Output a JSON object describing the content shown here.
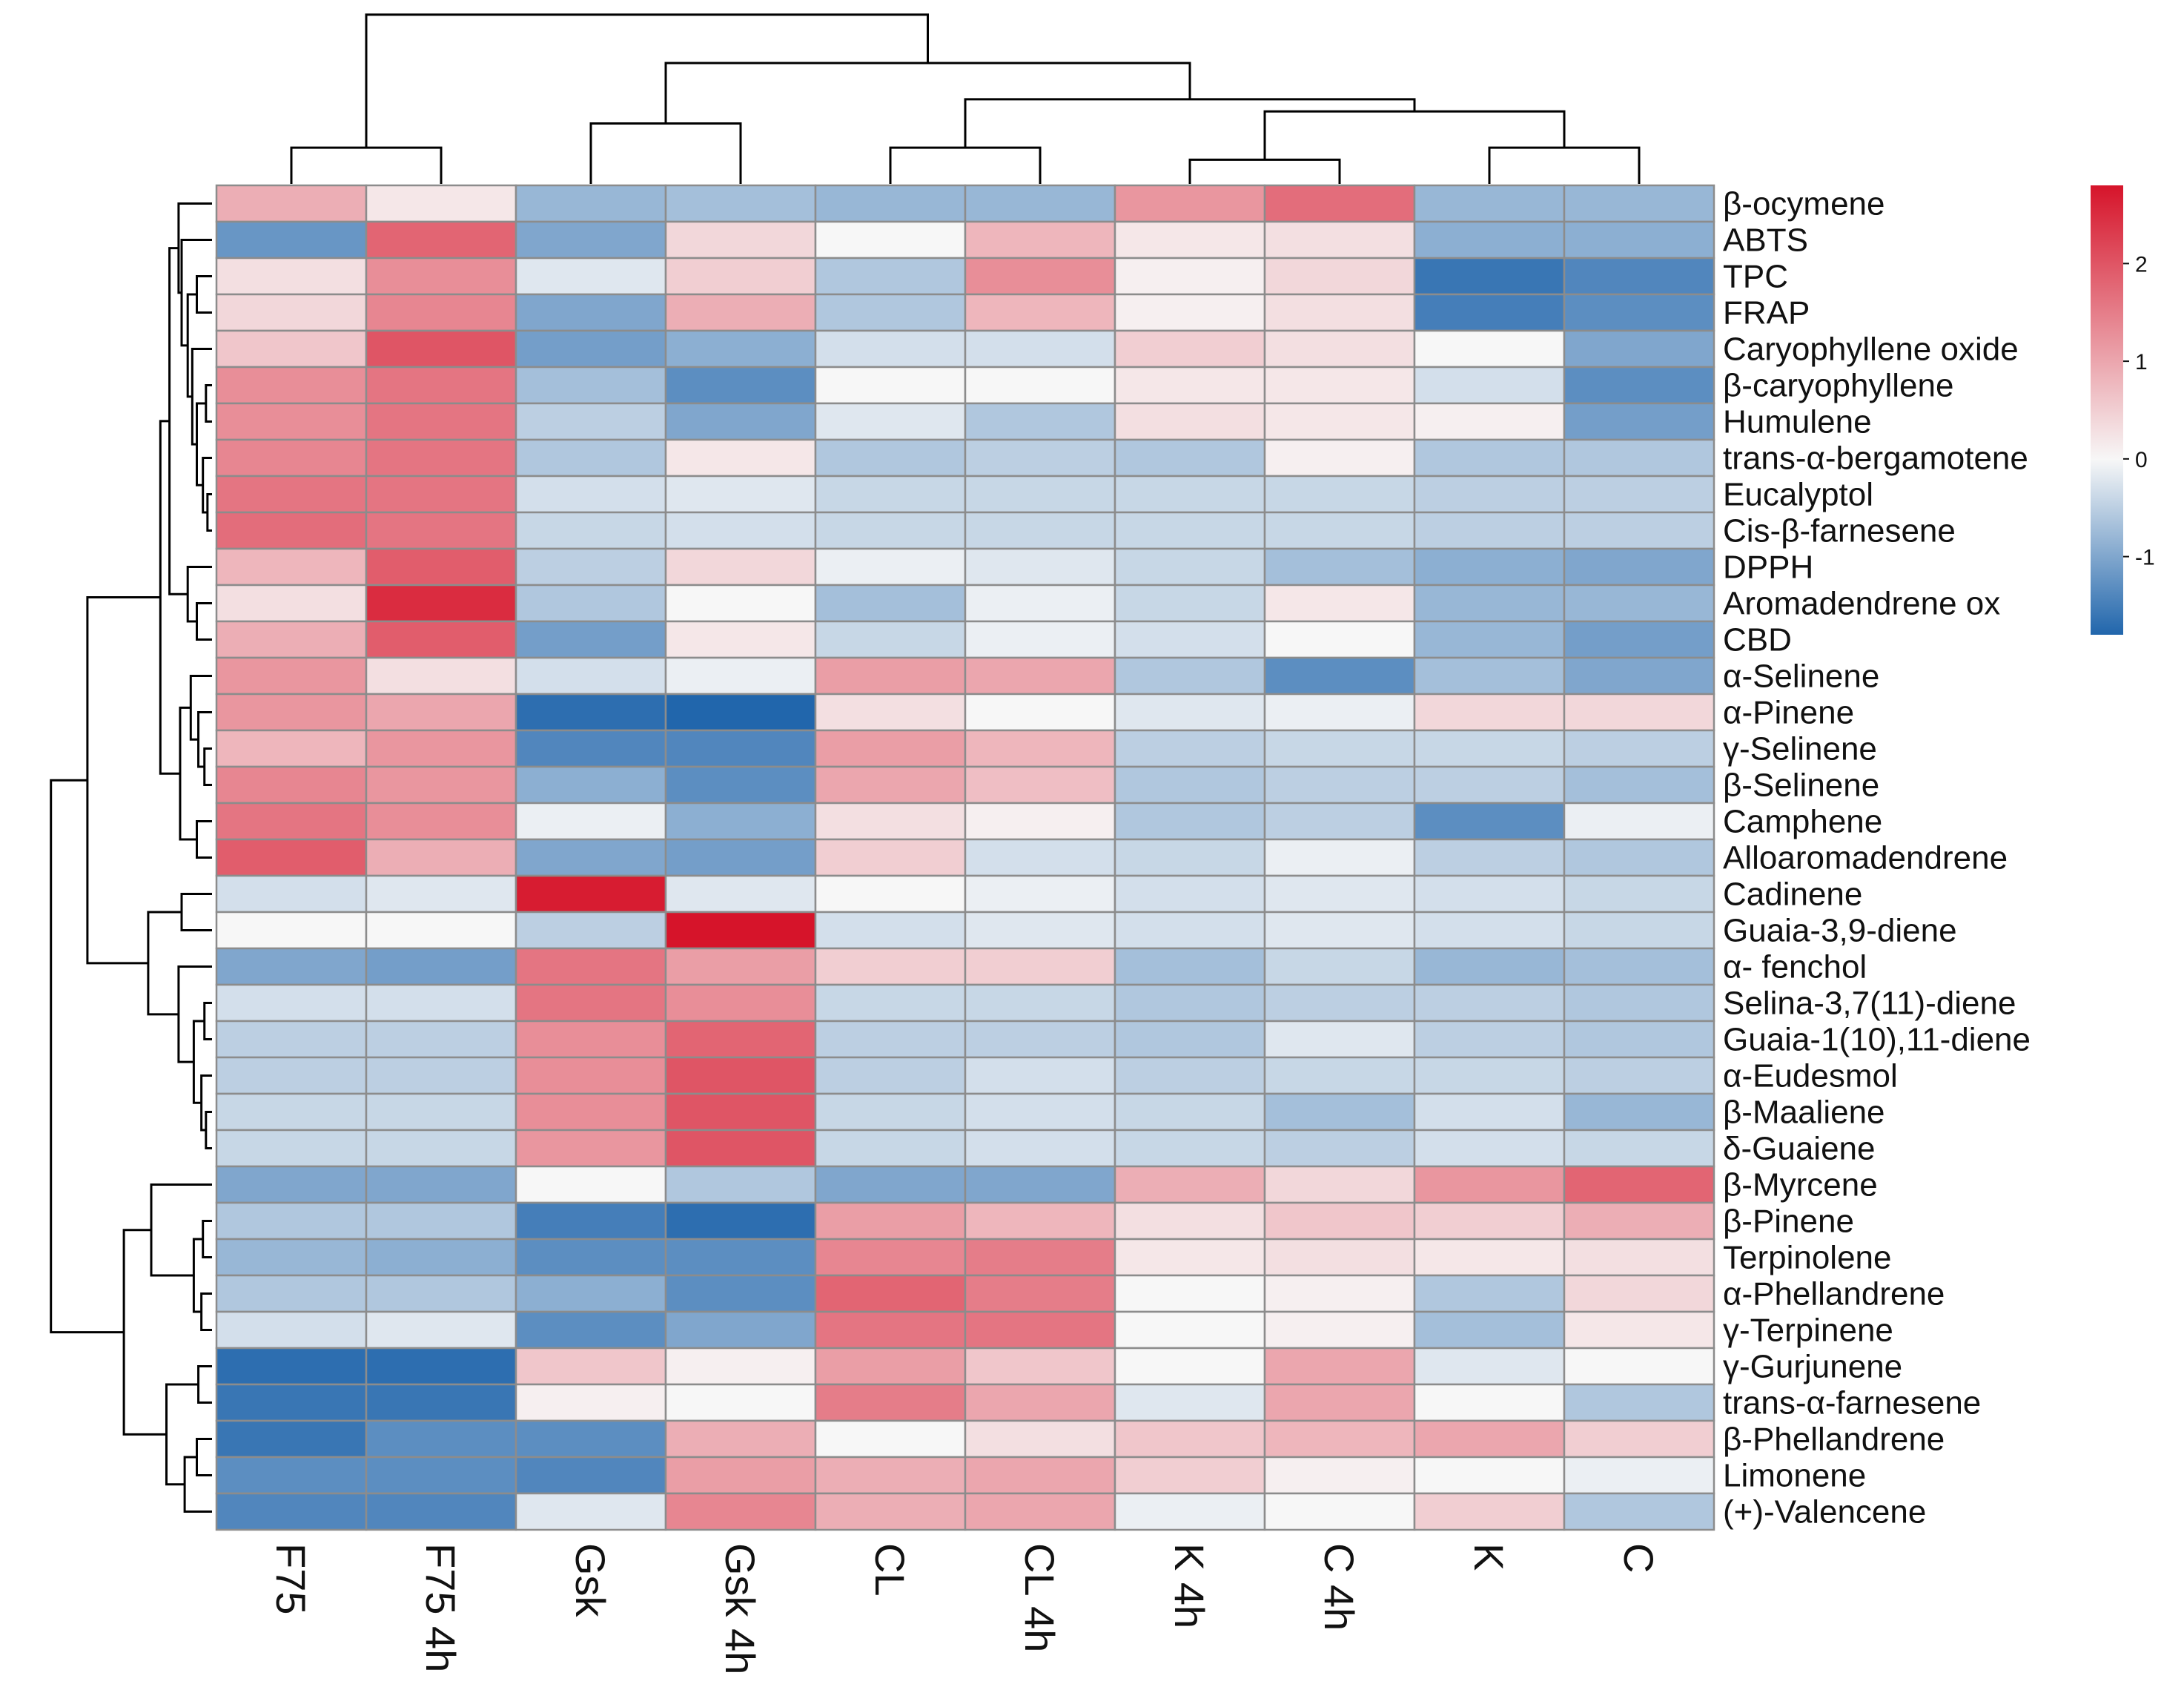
{
  "chart_data": {
    "type": "heatmap",
    "title": "",
    "columns": [
      "F75",
      "F75 4h",
      "Gsk",
      "Gsk 4h",
      "CL",
      "CL 4h",
      "K 4h",
      "C 4h",
      "K",
      "C"
    ],
    "rows": [
      "β-ocymene",
      "ABTS",
      "TPC",
      "FRAP",
      "Caryophyllene oxide",
      "β-caryophyllene",
      "Humulene",
      "trans-α-bergamotene",
      "Eucalyptol",
      "Cis-β-farnesene",
      "DPPH",
      "Aromadendrene ox",
      "CBD",
      "α-Selinene",
      "α-Pinene",
      "γ-Selinene",
      "β-Selinene",
      "Camphene",
      "Alloaromadendrene",
      "Cadinene",
      "Guaia-3,9-diene",
      "α- fenchol",
      "Selina-3,7(11)-diene",
      "Guaia-1(10),11-diene",
      "α-Eudesmol",
      "β-Maaliene",
      "δ-Guaiene",
      "β-Myrcene",
      "β-Pinene",
      "Terpinolene",
      "α-Phellandrene",
      "γ-Terpinene",
      "γ-Gurjunene",
      "trans-α-farnesene",
      "β-Phellandrene",
      "Limonene",
      "(+)-Valencene"
    ],
    "values": [
      [
        0.9,
        0.2,
        -0.8,
        -0.7,
        -0.8,
        -0.8,
        1.2,
        1.7,
        -0.8,
        -0.8
      ],
      [
        -1.2,
        1.8,
        -1.0,
        0.4,
        0.0,
        0.8,
        0.2,
        0.3,
        -0.9,
        -0.9
      ],
      [
        0.3,
        1.3,
        -0.2,
        0.5,
        -0.6,
        1.3,
        0.1,
        0.4,
        -1.6,
        -1.4
      ],
      [
        0.4,
        1.4,
        -1.0,
        0.9,
        -0.6,
        0.8,
        0.1,
        0.3,
        -1.5,
        -1.3
      ],
      [
        0.6,
        2.0,
        -1.1,
        -0.9,
        -0.3,
        -0.3,
        0.5,
        0.3,
        0.0,
        -1.0
      ],
      [
        1.3,
        1.6,
        -0.7,
        -1.3,
        0.0,
        0.0,
        0.2,
        0.2,
        -0.3,
        -1.3
      ],
      [
        1.3,
        1.6,
        -0.5,
        -1.0,
        -0.2,
        -0.6,
        0.3,
        0.2,
        0.1,
        -1.1
      ],
      [
        1.4,
        1.6,
        -0.6,
        0.2,
        -0.6,
        -0.5,
        -0.6,
        0.1,
        -0.6,
        -0.6
      ],
      [
        1.6,
        1.6,
        -0.3,
        -0.2,
        -0.4,
        -0.4,
        -0.4,
        -0.4,
        -0.5,
        -0.5
      ],
      [
        1.7,
        1.6,
        -0.4,
        -0.3,
        -0.4,
        -0.4,
        -0.4,
        -0.4,
        -0.5,
        -0.5
      ],
      [
        0.8,
        1.9,
        -0.5,
        0.4,
        -0.1,
        -0.2,
        -0.4,
        -0.7,
        -0.9,
        -1.0
      ],
      [
        0.3,
        2.5,
        -0.6,
        0.0,
        -0.7,
        -0.1,
        -0.4,
        0.2,
        -0.8,
        -0.8
      ],
      [
        0.9,
        1.9,
        -1.1,
        0.2,
        -0.4,
        -0.1,
        -0.3,
        0.0,
        -0.8,
        -1.1
      ],
      [
        1.2,
        0.3,
        -0.3,
        -0.1,
        1.1,
        1.0,
        -0.6,
        -1.3,
        -0.7,
        -1.0
      ],
      [
        1.2,
        1.0,
        -1.7,
        -1.8,
        0.3,
        0.0,
        -0.2,
        -0.1,
        0.4,
        0.4
      ],
      [
        0.8,
        1.2,
        -1.4,
        -1.4,
        1.1,
        0.8,
        -0.5,
        -0.4,
        -0.4,
        -0.5
      ],
      [
        1.4,
        1.2,
        -0.9,
        -1.3,
        1.0,
        0.7,
        -0.6,
        -0.5,
        -0.5,
        -0.7
      ],
      [
        1.6,
        1.3,
        -0.1,
        -0.9,
        0.3,
        0.1,
        -0.6,
        -0.5,
        -1.3,
        -0.1
      ],
      [
        1.9,
        0.9,
        -1.0,
        -1.1,
        0.5,
        -0.3,
        -0.4,
        -0.1,
        -0.5,
        -0.6
      ],
      [
        -0.3,
        -0.2,
        2.7,
        -0.2,
        0.0,
        -0.1,
        -0.3,
        -0.2,
        -0.3,
        -0.4
      ],
      [
        0.0,
        0.0,
        -0.5,
        2.8,
        -0.3,
        -0.2,
        -0.3,
        -0.2,
        -0.3,
        -0.4
      ],
      [
        -1.0,
        -1.1,
        1.6,
        1.1,
        0.5,
        0.5,
        -0.7,
        -0.4,
        -0.8,
        -0.7
      ],
      [
        -0.3,
        -0.3,
        1.6,
        1.3,
        -0.4,
        -0.4,
        -0.6,
        -0.5,
        -0.5,
        -0.6
      ],
      [
        -0.5,
        -0.5,
        1.3,
        1.8,
        -0.5,
        -0.5,
        -0.6,
        -0.2,
        -0.5,
        -0.6
      ],
      [
        -0.5,
        -0.5,
        1.3,
        2.0,
        -0.5,
        -0.3,
        -0.5,
        -0.4,
        -0.4,
        -0.5
      ],
      [
        -0.4,
        -0.4,
        1.3,
        2.0,
        -0.4,
        -0.3,
        -0.4,
        -0.7,
        -0.3,
        -0.8
      ],
      [
        -0.4,
        -0.4,
        1.2,
        2.0,
        -0.4,
        -0.3,
        -0.4,
        -0.5,
        -0.3,
        -0.4
      ],
      [
        -1.0,
        -1.0,
        0.0,
        -0.6,
        -1.0,
        -1.0,
        0.9,
        0.4,
        1.2,
        1.8
      ],
      [
        -0.6,
        -0.6,
        -1.5,
        -1.7,
        1.1,
        0.8,
        0.3,
        0.6,
        0.5,
        0.9
      ],
      [
        -0.8,
        -0.9,
        -1.3,
        -1.3,
        1.4,
        1.5,
        0.2,
        0.3,
        0.2,
        0.3
      ],
      [
        -0.6,
        -0.6,
        -0.9,
        -1.3,
        1.8,
        1.5,
        0.0,
        0.1,
        -0.6,
        0.4
      ],
      [
        -0.3,
        -0.2,
        -1.3,
        -1.0,
        1.6,
        1.6,
        0.0,
        0.1,
        -0.7,
        0.2
      ],
      [
        -1.7,
        -1.7,
        0.6,
        0.1,
        1.1,
        0.6,
        0.0,
        1.0,
        -0.2,
        0.0
      ],
      [
        -1.6,
        -1.6,
        0.1,
        0.0,
        1.5,
        1.0,
        -0.2,
        1.0,
        0.0,
        -0.6
      ],
      [
        -1.6,
        -1.3,
        -1.3,
        0.9,
        0.0,
        0.3,
        0.6,
        0.8,
        1.0,
        0.5
      ],
      [
        -1.3,
        -1.3,
        -1.4,
        1.1,
        0.9,
        1.0,
        0.5,
        0.1,
        0.0,
        -0.1
      ],
      [
        -1.4,
        -1.4,
        -0.2,
        1.4,
        0.9,
        1.0,
        -0.1,
        0.0,
        0.5,
        -0.6
      ]
    ],
    "legend": {
      "ticks": [
        "2",
        "1",
        "0",
        "-1"
      ],
      "range": [
        -1.8,
        2.8
      ],
      "position": "top-right"
    },
    "colors": {
      "low": "#2166ac",
      "mid": "#f7f7f7",
      "high": "#d6142a",
      "cell_border": "#8c8c8c",
      "tree": "#000000"
    }
  }
}
